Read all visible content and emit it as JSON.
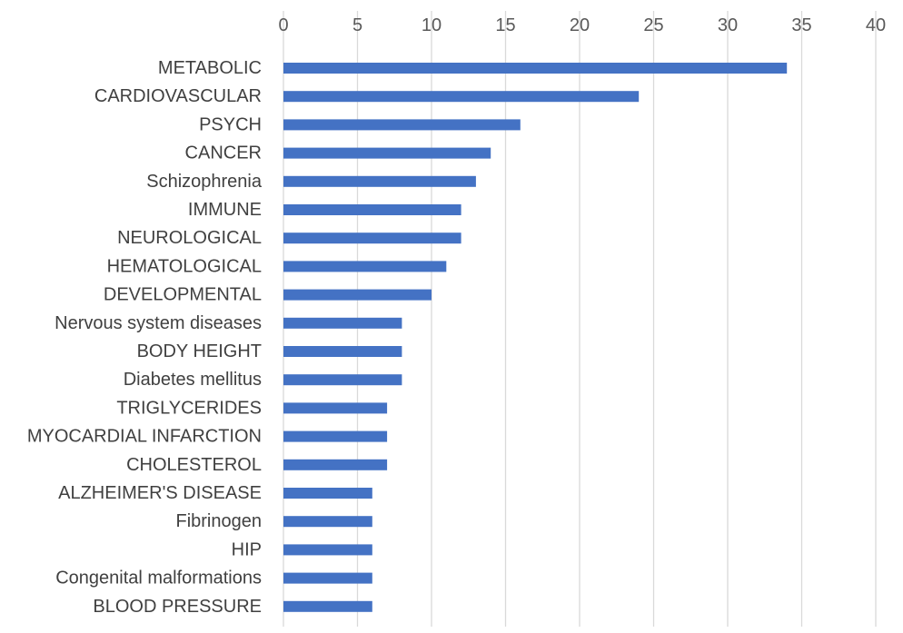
{
  "chart_data": {
    "type": "bar",
    "orientation": "horizontal",
    "title": "",
    "xlabel": "",
    "ylabel": "",
    "xlim": [
      0,
      40
    ],
    "x_ticks": [
      "0",
      "5",
      "10",
      "15",
      "20",
      "25",
      "30",
      "35",
      "40"
    ],
    "x_axis_position": "top",
    "grid": true,
    "legend": "none",
    "categories": [
      "METABOLIC",
      "CARDIOVASCULAR",
      "PSYCH",
      "CANCER",
      "Schizophrenia",
      "IMMUNE",
      "NEUROLOGICAL",
      "HEMATOLOGICAL",
      "DEVELOPMENTAL",
      "Nervous system diseases",
      "BODY HEIGHT",
      "Diabetes mellitus",
      "TRIGLYCERIDES",
      "MYOCARDIAL INFARCTION",
      "CHOLESTEROL",
      "ALZHEIMER'S DISEASE",
      "Fibrinogen",
      "HIP",
      "Congenital malformations",
      "BLOOD PRESSURE"
    ],
    "values": [
      34,
      24,
      16,
      14,
      13,
      12,
      12,
      11,
      10,
      8,
      8,
      8,
      7,
      7,
      7,
      6,
      6,
      6,
      6,
      6
    ],
    "bar_color": "#4472c4",
    "grid_color": "#d9d9d9"
  }
}
